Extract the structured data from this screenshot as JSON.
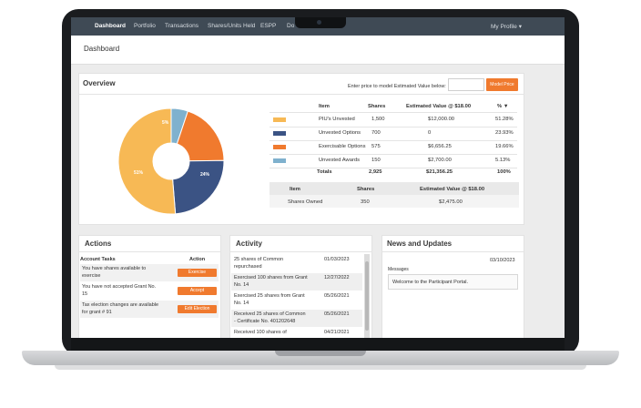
{
  "nav": {
    "items": [
      "Dashboard",
      "Portfolio",
      "Transactions",
      "Shares/Units Held",
      "ESPP",
      "Do"
    ],
    "profile": "My Profile ▾"
  },
  "page": {
    "title": "Dashboard"
  },
  "overview": {
    "title": "Overview",
    "model_label": "Enter price to model Estimated Value below:",
    "model_input_value": "",
    "model_button": "Model Price",
    "table": {
      "headers": [
        "Item",
        "Shares",
        "Estimated Value @ $18.00",
        "% ▼"
      ],
      "rows": [
        {
          "item": "PIU's Unvested",
          "shares": "1,500",
          "value": "$12,000.00",
          "pct": "51.28%",
          "color": "#f7b955"
        },
        {
          "item": "Unvested Options",
          "shares": "700",
          "value": "0",
          "pct": "23.93%",
          "color": "#3b5384"
        },
        {
          "item": "Exercisable Options",
          "shares": "575",
          "value": "$6,656.25",
          "pct": "19.66%",
          "color": "#f07a2e"
        },
        {
          "item": "Unvested Awards",
          "shares": "150",
          "value": "$2,700.00",
          "pct": "5.13%",
          "color": "#7fb1ce"
        }
      ],
      "totals": {
        "label": "Totals",
        "shares": "2,925",
        "value": "$21,356.25",
        "pct": "100%"
      }
    },
    "owned": {
      "headers": [
        "Item",
        "Shares",
        "Estimated Value @ $18.00"
      ],
      "row": {
        "item": "Shares Owned",
        "shares": "350",
        "value": "$2,475.00"
      }
    },
    "pie": {
      "slices": [
        {
          "label": "51%",
          "value": 51.28,
          "color": "#f7b955"
        },
        {
          "label": "24%",
          "value": 23.93,
          "color": "#3b5384"
        },
        {
          "label": "20%",
          "value": 19.66,
          "color": "#f07a2e"
        },
        {
          "label": "5%",
          "value": 5.13,
          "color": "#7fb1ce"
        }
      ]
    }
  },
  "actions": {
    "title": "Actions",
    "headers": [
      "Account Tasks",
      "Action"
    ],
    "rows": [
      {
        "line1": "You have shares available to",
        "line2": "exercise",
        "button": "Exercise"
      },
      {
        "line1": "You have not accepted Grant No.",
        "line2": "15",
        "button": "Accept"
      },
      {
        "line1": "Tax election changes are available",
        "line2": "for grant # 91",
        "button": "Edit Election"
      }
    ]
  },
  "activity": {
    "title": "Activity",
    "rows": [
      {
        "line1": "25 shares of Common",
        "line2": "repurchased",
        "date": "01/03/2023"
      },
      {
        "line1": "Exercised 100 shares from Grant",
        "line2": "No. 14",
        "date": "12/27/2022"
      },
      {
        "line1": "Exercised 25 shares from Grant",
        "line2": "No. 14",
        "date": "05/26/2021"
      },
      {
        "line1": "Received 25 shares of Common",
        "line2": "- Certificate No. 401202648",
        "date": "05/26/2021"
      },
      {
        "line1": "Received 100 shares of",
        "line2": "",
        "date": "04/21/2021"
      }
    ]
  },
  "news": {
    "title": "News and Updates",
    "date": "03/10/2023",
    "messages_label": "Messages",
    "message": "Welcome to the Participant Portal."
  }
}
